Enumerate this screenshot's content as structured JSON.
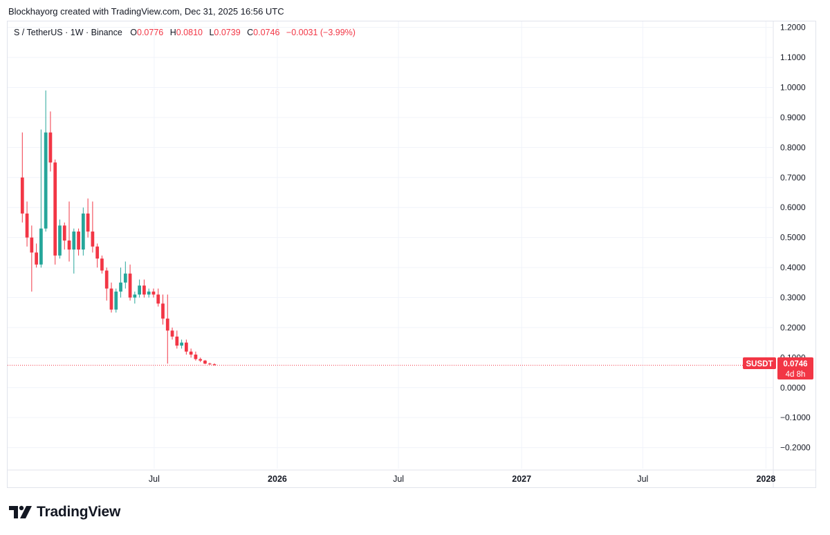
{
  "header": {
    "attribution": "Blockhayorg created with TradingView.com, Dec 31, 2025 16:56 UTC"
  },
  "legend": {
    "symbol": "S / TetherUS · 1W · Binance",
    "open_label": "O",
    "open": "0.0776",
    "high_label": "H",
    "high": "0.0810",
    "low_label": "L",
    "low": "0.0739",
    "close_label": "C",
    "close": "0.0746",
    "change": "−0.0031 (−3.99%)"
  },
  "price_tag": {
    "ticker": "SUSDT",
    "price": "0.0746",
    "countdown": "4d 8h"
  },
  "footer": {
    "brand": "TradingView"
  },
  "colors": {
    "up": "#26a69a",
    "down": "#f23645",
    "grid": "#f0f3fa",
    "axis_text": "#131722"
  },
  "chart_data": {
    "type": "candlestick",
    "y_ticks": [
      "1.2000",
      "1.1000",
      "1.0000",
      "0.9000",
      "0.8000",
      "0.7000",
      "0.6000",
      "0.5000",
      "0.4000",
      "0.3000",
      "0.2000",
      "0.1000",
      "0.0000",
      "−0.1000",
      "−0.2000"
    ],
    "ylim": [
      -0.27,
      1.22
    ],
    "x_ticks": [
      {
        "label": "Jul",
        "date": "2025-07-01",
        "bold": false
      },
      {
        "label": "2026",
        "date": "2026-01-01",
        "bold": true
      },
      {
        "label": "Jul",
        "date": "2026-07-01",
        "bold": false
      },
      {
        "label": "2027",
        "date": "2027-01-01",
        "bold": true
      },
      {
        "label": "Jul",
        "date": "2027-07-01",
        "bold": false
      },
      {
        "label": "2028",
        "date": "2028-01-01",
        "bold": true
      }
    ],
    "xlim": [
      "2024-11-24",
      "2028-01-12"
    ],
    "last_price": 0.0746,
    "candles": [
      {
        "t": "2024-12-16",
        "o": 0.7,
        "h": 0.85,
        "l": 0.55,
        "c": 0.58
      },
      {
        "t": "2024-12-23",
        "o": 0.58,
        "h": 0.62,
        "l": 0.47,
        "c": 0.5
      },
      {
        "t": "2024-12-30",
        "o": 0.5,
        "h": 0.54,
        "l": 0.32,
        "c": 0.45
      },
      {
        "t": "2025-01-06",
        "o": 0.45,
        "h": 0.48,
        "l": 0.4,
        "c": 0.41
      },
      {
        "t": "2025-01-13",
        "o": 0.41,
        "h": 0.86,
        "l": 0.4,
        "c": 0.53
      },
      {
        "t": "2025-01-20",
        "o": 0.53,
        "h": 0.99,
        "l": 0.52,
        "c": 0.85
      },
      {
        "t": "2025-01-27",
        "o": 0.85,
        "h": 0.92,
        "l": 0.72,
        "c": 0.75
      },
      {
        "t": "2025-02-03",
        "o": 0.75,
        "h": 0.76,
        "l": 0.41,
        "c": 0.44
      },
      {
        "t": "2025-02-10",
        "o": 0.44,
        "h": 0.56,
        "l": 0.43,
        "c": 0.54
      },
      {
        "t": "2025-02-17",
        "o": 0.54,
        "h": 0.55,
        "l": 0.46,
        "c": 0.49
      },
      {
        "t": "2025-02-24",
        "o": 0.49,
        "h": 0.62,
        "l": 0.42,
        "c": 0.46
      },
      {
        "t": "2025-03-03",
        "o": 0.46,
        "h": 0.53,
        "l": 0.38,
        "c": 0.52
      },
      {
        "t": "2025-03-10",
        "o": 0.52,
        "h": 0.53,
        "l": 0.44,
        "c": 0.46
      },
      {
        "t": "2025-03-17",
        "o": 0.46,
        "h": 0.6,
        "l": 0.44,
        "c": 0.58
      },
      {
        "t": "2025-03-24",
        "o": 0.58,
        "h": 0.63,
        "l": 0.5,
        "c": 0.52
      },
      {
        "t": "2025-03-31",
        "o": 0.52,
        "h": 0.62,
        "l": 0.45,
        "c": 0.47
      },
      {
        "t": "2025-04-07",
        "o": 0.47,
        "h": 0.48,
        "l": 0.4,
        "c": 0.43
      },
      {
        "t": "2025-04-14",
        "o": 0.43,
        "h": 0.44,
        "l": 0.38,
        "c": 0.39
      },
      {
        "t": "2025-04-21",
        "o": 0.39,
        "h": 0.4,
        "l": 0.29,
        "c": 0.33
      },
      {
        "t": "2025-04-28",
        "o": 0.33,
        "h": 0.35,
        "l": 0.25,
        "c": 0.26
      },
      {
        "t": "2025-05-05",
        "o": 0.26,
        "h": 0.33,
        "l": 0.25,
        "c": 0.32
      },
      {
        "t": "2025-05-12",
        "o": 0.32,
        "h": 0.4,
        "l": 0.3,
        "c": 0.35
      },
      {
        "t": "2025-05-19",
        "o": 0.35,
        "h": 0.42,
        "l": 0.33,
        "c": 0.38
      },
      {
        "t": "2025-05-26",
        "o": 0.38,
        "h": 0.41,
        "l": 0.29,
        "c": 0.3
      },
      {
        "t": "2025-06-02",
        "o": 0.3,
        "h": 0.32,
        "l": 0.28,
        "c": 0.31
      },
      {
        "t": "2025-06-09",
        "o": 0.31,
        "h": 0.36,
        "l": 0.3,
        "c": 0.34
      },
      {
        "t": "2025-06-16",
        "o": 0.34,
        "h": 0.36,
        "l": 0.3,
        "c": 0.31
      },
      {
        "t": "2025-06-23",
        "o": 0.31,
        "h": 0.33,
        "l": 0.3,
        "c": 0.32
      },
      {
        "t": "2025-06-30",
        "o": 0.32,
        "h": 0.33,
        "l": 0.3,
        "c": 0.31
      },
      {
        "t": "2025-07-07",
        "o": 0.31,
        "h": 0.33,
        "l": 0.27,
        "c": 0.28
      },
      {
        "t": "2025-07-14",
        "o": 0.28,
        "h": 0.31,
        "l": 0.21,
        "c": 0.23
      },
      {
        "t": "2025-07-21",
        "o": 0.23,
        "h": 0.31,
        "l": 0.08,
        "c": 0.19
      },
      {
        "t": "2025-07-28",
        "o": 0.19,
        "h": 0.2,
        "l": 0.16,
        "c": 0.17
      },
      {
        "t": "2025-08-04",
        "o": 0.17,
        "h": 0.19,
        "l": 0.13,
        "c": 0.14
      },
      {
        "t": "2025-08-11",
        "o": 0.14,
        "h": 0.16,
        "l": 0.13,
        "c": 0.15
      },
      {
        "t": "2025-08-18",
        "o": 0.15,
        "h": 0.16,
        "l": 0.11,
        "c": 0.12
      },
      {
        "t": "2025-08-25",
        "o": 0.12,
        "h": 0.13,
        "l": 0.1,
        "c": 0.11
      },
      {
        "t": "2025-09-01",
        "o": 0.11,
        "h": 0.12,
        "l": 0.09,
        "c": 0.095
      },
      {
        "t": "2025-09-08",
        "o": 0.095,
        "h": 0.1,
        "l": 0.085,
        "c": 0.09
      },
      {
        "t": "2025-09-15",
        "o": 0.09,
        "h": 0.092,
        "l": 0.078,
        "c": 0.08
      },
      {
        "t": "2025-09-22",
        "o": 0.08,
        "h": 0.083,
        "l": 0.076,
        "c": 0.0776
      },
      {
        "t": "2025-09-29",
        "o": 0.0776,
        "h": 0.081,
        "l": 0.0739,
        "c": 0.0746
      }
    ]
  }
}
